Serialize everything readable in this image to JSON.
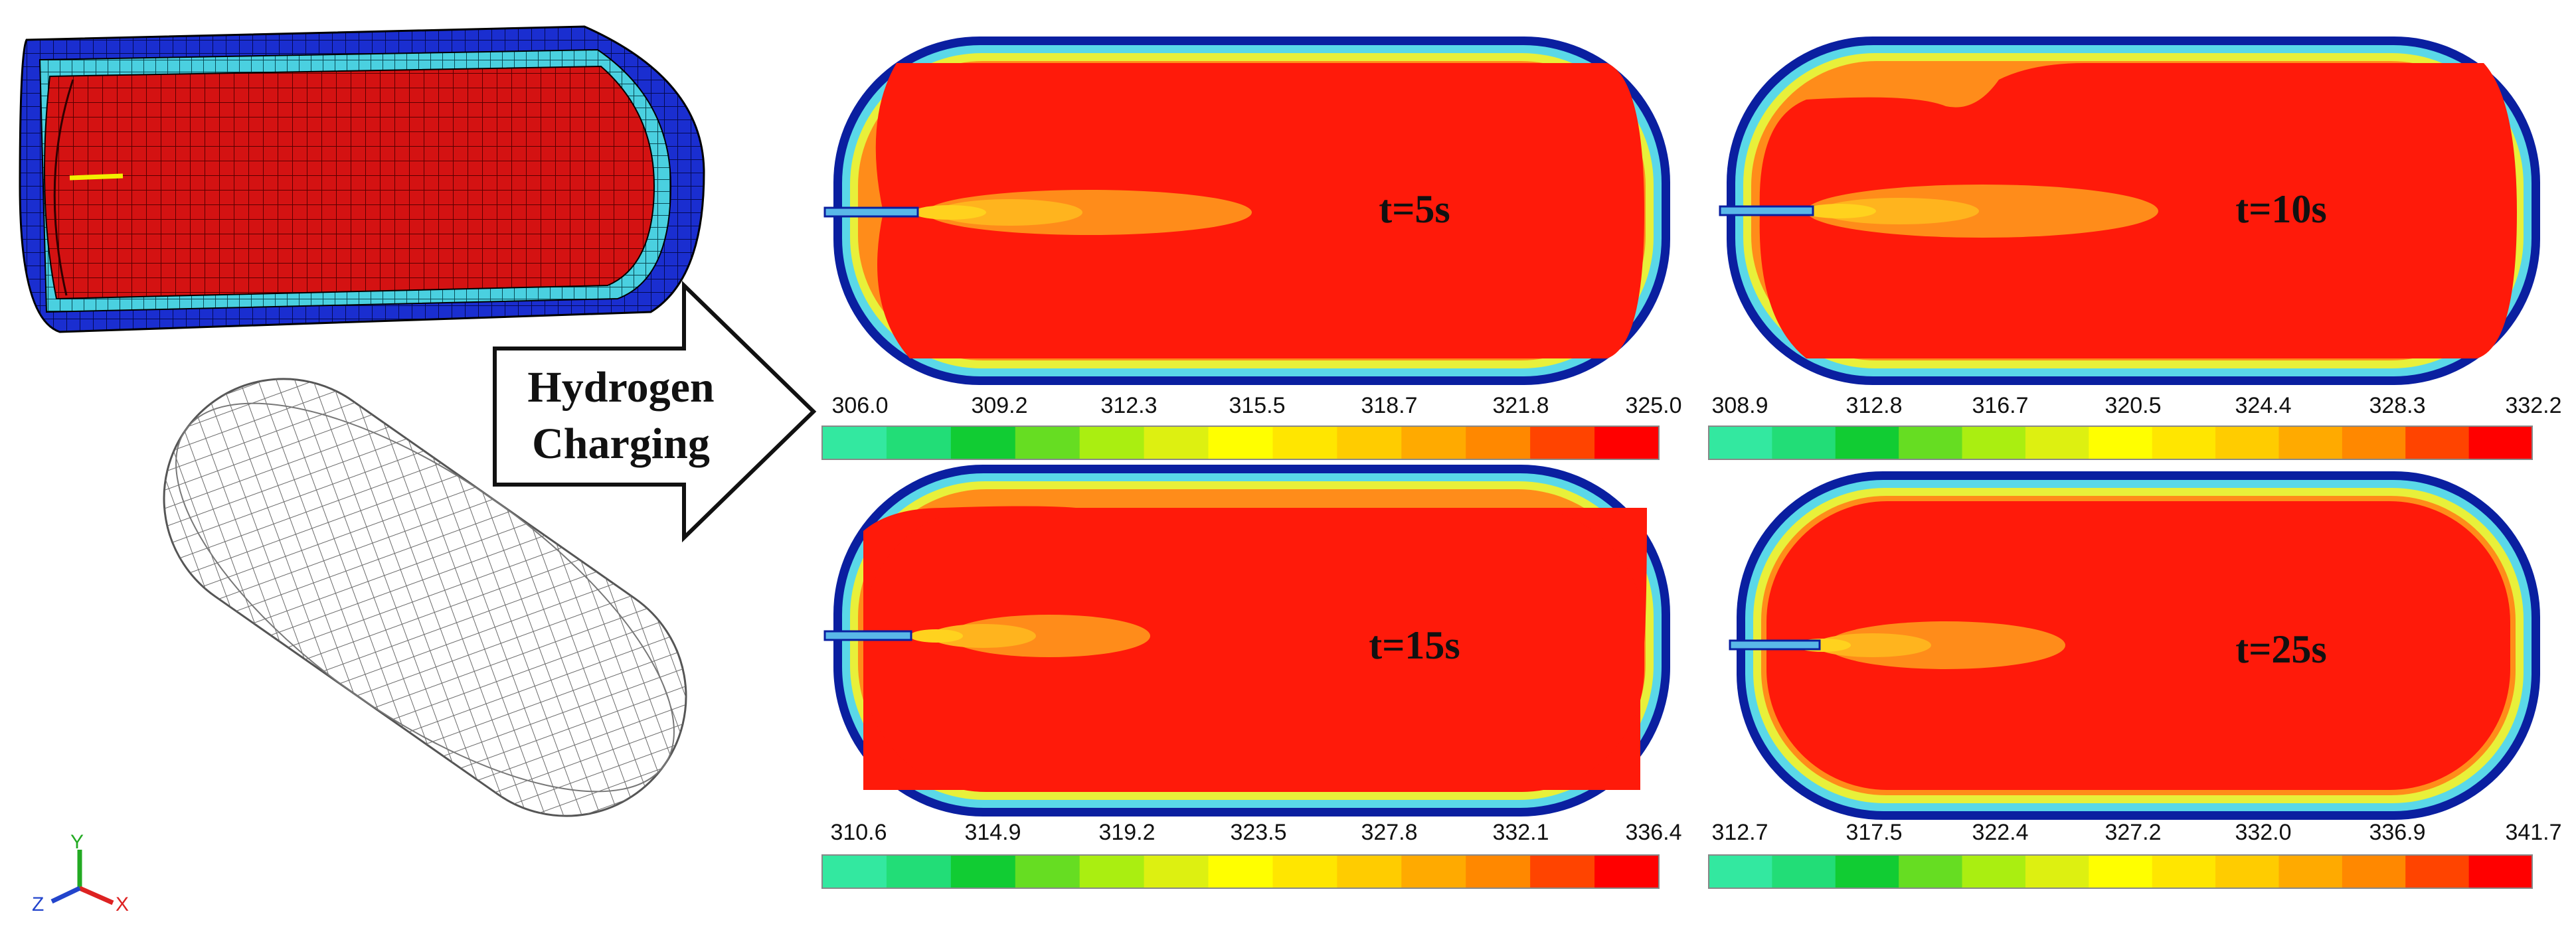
{
  "arrow": {
    "line1": "Hydrogen",
    "line2": "Charging"
  },
  "axes": {
    "y": "Y",
    "z": "Z",
    "x": "X",
    "y_color": "#22aa22",
    "z_color": "#2244cc",
    "x_color": "#dd2222"
  },
  "panels": [
    {
      "time_label": "t=5s",
      "ticks": [
        "306.0",
        "309.2",
        "312.3",
        "315.5",
        "318.7",
        "321.8",
        "325.0"
      ]
    },
    {
      "time_label": "t=10s",
      "ticks": [
        "308.9",
        "312.8",
        "316.7",
        "320.5",
        "324.4",
        "328.3",
        "332.2"
      ]
    },
    {
      "time_label": "t=15s",
      "ticks": [
        "310.6",
        "314.9",
        "319.2",
        "323.5",
        "327.8",
        "332.1",
        "336.4"
      ]
    },
    {
      "time_label": "t=25s",
      "ticks": [
        "312.7",
        "317.5",
        "322.4",
        "327.2",
        "332.0",
        "336.9",
        "341.7"
      ]
    }
  ],
  "colormap": [
    "#33e8a0",
    "#22dd77",
    "#11cc33",
    "#66dd22",
    "#aaee11",
    "#ddf011",
    "#ffff00",
    "#ffe600",
    "#ffcc00",
    "#ffaa00",
    "#ff8800",
    "#ff4400",
    "#ff0000"
  ],
  "colors": {
    "tank_red": "#ff1a0a",
    "plume_orange": "#ff8c1a",
    "plume_yellow": "#ffd21e",
    "wall_blue": "#0a1fa0",
    "liner_cyan": "#5ad8e8",
    "liner_yellow": "#e8f03a"
  }
}
